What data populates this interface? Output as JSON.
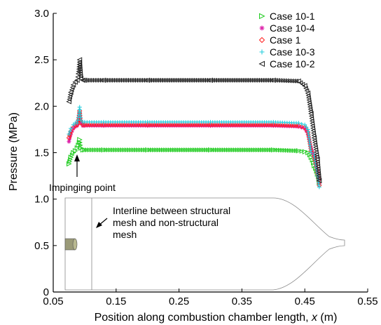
{
  "chart_data": {
    "type": "scatter",
    "title": "",
    "xlabel": "Position along combustion chamber length, ",
    "xlabel_var": "x",
    "xlabel_unit": " (m)",
    "ylabel": "Pressure (MPa)",
    "xlim": [
      0.05,
      0.55
    ],
    "ylim": [
      0,
      3.0
    ],
    "x_ticks": [
      0.05,
      0.15,
      0.25,
      0.35,
      0.45,
      0.55
    ],
    "x_tick_labels": [
      "0.05",
      "0.15",
      "0.25",
      "0.35",
      "0.45",
      "0.55"
    ],
    "y_ticks": [
      0,
      0.5,
      1.0,
      1.5,
      2.0,
      2.5,
      3.0
    ],
    "y_tick_labels": [
      "0",
      "0.5",
      "1.0",
      "1.5",
      "2.0",
      "2.5",
      "3.0"
    ],
    "grid": false,
    "legend_position": "top-right",
    "series": [
      {
        "name": "Case 10-1",
        "marker": "triangle-right",
        "color": "#22cc22",
        "x": [
          0.075,
          0.078,
          0.082,
          0.085,
          0.088,
          0.09,
          0.092,
          0.094,
          0.097,
          0.1,
          0.13,
          0.2,
          0.3,
          0.4,
          0.44,
          0.45,
          0.455,
          0.46,
          0.465,
          0.47,
          0.473
        ],
        "y": [
          1.38,
          1.45,
          1.5,
          1.52,
          1.55,
          1.58,
          1.64,
          1.55,
          1.53,
          1.53,
          1.53,
          1.53,
          1.53,
          1.53,
          1.52,
          1.51,
          1.5,
          1.45,
          1.36,
          1.27,
          1.18
        ]
      },
      {
        "name": "Case 10-4",
        "marker": "asterisk",
        "color": "#dd22aa",
        "x": [
          0.075,
          0.078,
          0.082,
          0.085,
          0.088,
          0.09,
          0.092,
          0.094,
          0.097,
          0.1,
          0.13,
          0.2,
          0.3,
          0.4,
          0.44,
          0.45,
          0.455,
          0.46,
          0.465,
          0.47,
          0.473
        ],
        "y": [
          1.62,
          1.7,
          1.76,
          1.78,
          1.79,
          1.84,
          1.92,
          1.82,
          1.79,
          1.79,
          1.79,
          1.79,
          1.79,
          1.79,
          1.78,
          1.76,
          1.7,
          1.55,
          1.45,
          1.3,
          1.17
        ]
      },
      {
        "name": "Case 1",
        "marker": "diamond",
        "color": "#ff2222",
        "x": [
          0.075,
          0.078,
          0.082,
          0.085,
          0.088,
          0.09,
          0.092,
          0.094,
          0.097,
          0.1,
          0.13,
          0.2,
          0.3,
          0.4,
          0.44,
          0.45,
          0.455,
          0.46,
          0.465,
          0.47,
          0.473
        ],
        "y": [
          1.66,
          1.73,
          1.77,
          1.79,
          1.8,
          1.85,
          1.95,
          1.82,
          1.8,
          1.8,
          1.8,
          1.8,
          1.8,
          1.8,
          1.79,
          1.77,
          1.72,
          1.52,
          1.46,
          1.28,
          1.15
        ]
      },
      {
        "name": "Case 10-3",
        "marker": "plus",
        "color": "#22ccdd",
        "x": [
          0.075,
          0.078,
          0.082,
          0.085,
          0.088,
          0.09,
          0.092,
          0.094,
          0.097,
          0.1,
          0.13,
          0.2,
          0.3,
          0.4,
          0.44,
          0.45,
          0.455,
          0.46,
          0.465,
          0.47,
          0.473
        ],
        "y": [
          1.7,
          1.76,
          1.8,
          1.82,
          1.82,
          1.88,
          1.99,
          1.85,
          1.83,
          1.83,
          1.83,
          1.83,
          1.83,
          1.83,
          1.82,
          1.8,
          1.75,
          1.5,
          1.48,
          1.25,
          1.13
        ]
      },
      {
        "name": "Case 10-2",
        "marker": "triangle-left",
        "color": "#222222",
        "x": [
          0.075,
          0.078,
          0.082,
          0.085,
          0.088,
          0.09,
          0.092,
          0.094,
          0.097,
          0.1,
          0.13,
          0.2,
          0.3,
          0.4,
          0.44,
          0.45,
          0.455,
          0.46,
          0.465,
          0.47,
          0.473
        ],
        "y": [
          2.05,
          2.15,
          2.23,
          2.26,
          2.28,
          2.35,
          2.5,
          2.3,
          2.28,
          2.28,
          2.28,
          2.28,
          2.28,
          2.28,
          2.27,
          2.22,
          2.14,
          1.92,
          1.66,
          1.43,
          1.2
        ]
      }
    ],
    "annotations": [
      {
        "text": "Impinging point"
      },
      {
        "text": "Interline between structural"
      },
      {
        "text": "mesh and non-structural"
      },
      {
        "text": "mesh"
      }
    ],
    "colors": {
      "axis": "#000000",
      "geometry_outline": "#888888",
      "injector_fill": "#9a9a78"
    }
  }
}
